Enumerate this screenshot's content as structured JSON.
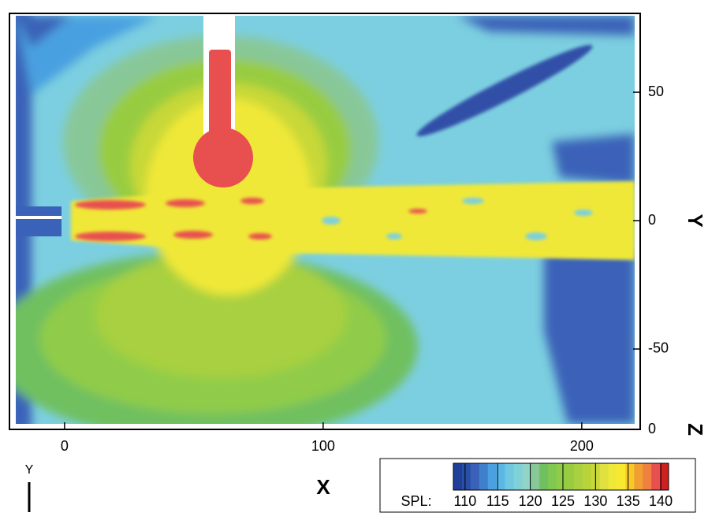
{
  "chart_data": {
    "type": "contour",
    "xlabel": "X",
    "ylabel": "Y",
    "zlabel": "Z",
    "xlim": [
      -21.3,
      222.6
    ],
    "xticks": [
      0,
      100,
      200
    ],
    "ylim": [
      -81.3,
      80.7
    ],
    "yticks": [
      -50,
      0,
      50
    ],
    "zticks": [
      0
    ],
    "triad_label": "Y",
    "colorbar": {
      "label": "SPL:",
      "clim": [
        108.2,
        141.2
      ],
      "ticks": [
        110,
        115,
        120,
        125,
        130,
        135,
        140
      ],
      "colors": [
        "#1f3f9a",
        "#2950a8",
        "#3a62b8",
        "#3f80cc",
        "#4aa0e0",
        "#5ab8e8",
        "#70c8e0",
        "#80d0d8",
        "#90d4c8",
        "#88c898",
        "#70c060",
        "#80c850",
        "#90cc48",
        "#98cc40",
        "#a8d040",
        "#b8d438",
        "#c8d838",
        "#e0e040",
        "#f0e838",
        "#f8e830",
        "#f8c828",
        "#f0a030",
        "#f08040",
        "#e85050",
        "#d02020"
      ]
    }
  }
}
